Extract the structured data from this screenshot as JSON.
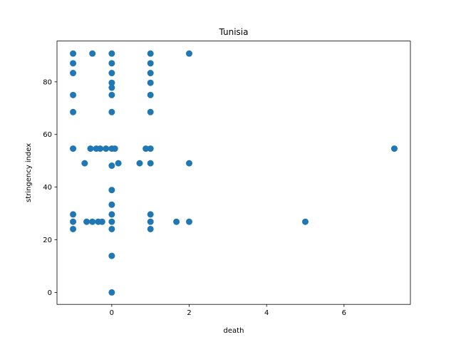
{
  "chart_data": {
    "type": "scatter",
    "title": "Tunisia",
    "xlabel": "death",
    "ylabel": "stringency index",
    "xlim": [
      -1.415,
      7.715
    ],
    "ylim": [
      -4.55,
      95.5
    ],
    "xticks": [
      0,
      2,
      4,
      6
    ],
    "yticks": [
      0,
      20,
      40,
      60,
      80
    ],
    "grid": false,
    "marker_color": "#1f77b4",
    "points": [
      {
        "x": -1,
        "y": 90.74
      },
      {
        "x": -1,
        "y": 87.04
      },
      {
        "x": -1,
        "y": 83.33
      },
      {
        "x": -1,
        "y": 75.0
      },
      {
        "x": -1,
        "y": 68.52
      },
      {
        "x": -1,
        "y": 54.63
      },
      {
        "x": -1,
        "y": 29.63
      },
      {
        "x": -1,
        "y": 26.85
      },
      {
        "x": -1,
        "y": 24.07
      },
      {
        "x": -0.5,
        "y": 90.74
      },
      {
        "x": -0.7,
        "y": 49.07
      },
      {
        "x": -0.55,
        "y": 54.63
      },
      {
        "x": -0.4,
        "y": 54.63
      },
      {
        "x": -0.3,
        "y": 54.63
      },
      {
        "x": -0.15,
        "y": 54.63
      },
      {
        "x": -0.65,
        "y": 26.85
      },
      {
        "x": -0.5,
        "y": 26.85
      },
      {
        "x": -0.35,
        "y": 26.85
      },
      {
        "x": -0.25,
        "y": 26.85
      },
      {
        "x": 0,
        "y": 90.74
      },
      {
        "x": 0,
        "y": 87.04
      },
      {
        "x": 0,
        "y": 83.33
      },
      {
        "x": 0,
        "y": 79.63
      },
      {
        "x": 0,
        "y": 77.78
      },
      {
        "x": 0,
        "y": 75.0
      },
      {
        "x": 0,
        "y": 68.52
      },
      {
        "x": 0,
        "y": 54.63
      },
      {
        "x": 0,
        "y": 48.15
      },
      {
        "x": 0,
        "y": 38.89
      },
      {
        "x": 0,
        "y": 33.33
      },
      {
        "x": 0,
        "y": 29.63
      },
      {
        "x": 0,
        "y": 26.85
      },
      {
        "x": 0,
        "y": 24.07
      },
      {
        "x": 0,
        "y": 13.89
      },
      {
        "x": 0,
        "y": 0.0
      },
      {
        "x": 0.08,
        "y": 54.63
      },
      {
        "x": 0.17,
        "y": 49.07
      },
      {
        "x": 0.72,
        "y": 49.07
      },
      {
        "x": 0.88,
        "y": 54.63
      },
      {
        "x": 1,
        "y": 90.74
      },
      {
        "x": 1,
        "y": 87.04
      },
      {
        "x": 1,
        "y": 83.33
      },
      {
        "x": 1,
        "y": 79.63
      },
      {
        "x": 1,
        "y": 75.0
      },
      {
        "x": 1,
        "y": 68.52
      },
      {
        "x": 1,
        "y": 54.63
      },
      {
        "x": 1,
        "y": 49.07
      },
      {
        "x": 1,
        "y": 29.63
      },
      {
        "x": 1,
        "y": 26.85
      },
      {
        "x": 1,
        "y": 24.07
      },
      {
        "x": 1.67,
        "y": 26.85
      },
      {
        "x": 2,
        "y": 90.74
      },
      {
        "x": 2,
        "y": 49.07
      },
      {
        "x": 2,
        "y": 26.85
      },
      {
        "x": 5,
        "y": 26.85
      },
      {
        "x": 7.3,
        "y": 54.63
      }
    ]
  }
}
